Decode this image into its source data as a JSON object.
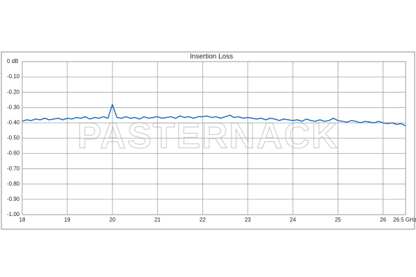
{
  "chart_data": {
    "type": "line",
    "title": "Insertion Loss",
    "watermark": "PASTERNACK",
    "x": [
      18.0,
      18.1,
      18.2,
      18.3,
      18.4,
      18.5,
      18.6,
      18.7,
      18.8,
      18.9,
      19.0,
      19.1,
      19.2,
      19.3,
      19.4,
      19.5,
      19.6,
      19.7,
      19.8,
      19.9,
      20.0,
      20.1,
      20.2,
      20.3,
      20.4,
      20.5,
      20.6,
      20.7,
      20.8,
      20.9,
      21.0,
      21.1,
      21.2,
      21.3,
      21.4,
      21.5,
      21.6,
      21.7,
      21.8,
      21.9,
      22.0,
      22.1,
      22.2,
      22.3,
      22.4,
      22.5,
      22.6,
      22.7,
      22.8,
      22.9,
      23.0,
      23.1,
      23.2,
      23.3,
      23.4,
      23.5,
      23.6,
      23.7,
      23.8,
      23.9,
      24.0,
      24.1,
      24.2,
      24.3,
      24.4,
      24.5,
      24.6,
      24.7,
      24.8,
      24.9,
      25.0,
      25.1,
      25.2,
      25.3,
      25.4,
      25.5,
      25.6,
      25.7,
      25.8,
      25.9,
      26.0,
      26.1,
      26.2,
      26.3,
      26.4,
      26.5
    ],
    "series": [
      {
        "name": "Insertion Loss",
        "color": "#1f6db5",
        "values": [
          -0.39,
          -0.38,
          -0.385,
          -0.375,
          -0.38,
          -0.37,
          -0.38,
          -0.375,
          -0.37,
          -0.38,
          -0.37,
          -0.375,
          -0.365,
          -0.37,
          -0.36,
          -0.375,
          -0.365,
          -0.37,
          -0.36,
          -0.37,
          -0.28,
          -0.365,
          -0.37,
          -0.36,
          -0.37,
          -0.365,
          -0.375,
          -0.36,
          -0.37,
          -0.365,
          -0.36,
          -0.37,
          -0.365,
          -0.36,
          -0.37,
          -0.355,
          -0.365,
          -0.36,
          -0.37,
          -0.36,
          -0.36,
          -0.355,
          -0.365,
          -0.36,
          -0.37,
          -0.36,
          -0.35,
          -0.365,
          -0.36,
          -0.37,
          -0.365,
          -0.37,
          -0.375,
          -0.37,
          -0.38,
          -0.37,
          -0.375,
          -0.385,
          -0.375,
          -0.38,
          -0.385,
          -0.38,
          -0.39,
          -0.375,
          -0.385,
          -0.39,
          -0.38,
          -0.39,
          -0.385,
          -0.37,
          -0.385,
          -0.39,
          -0.395,
          -0.385,
          -0.39,
          -0.4,
          -0.39,
          -0.395,
          -0.4,
          -0.39,
          -0.4,
          -0.405,
          -0.4,
          -0.41,
          -0.405,
          -0.42
        ]
      }
    ],
    "xlim": [
      18,
      26.5
    ],
    "ylim": [
      -1,
      0
    ],
    "xticks": [
      18,
      19,
      20,
      21,
      22,
      23,
      24,
      25,
      26,
      {
        "value": 26.5,
        "label": "26.5 GHz"
      }
    ],
    "yticks": [
      {
        "value": 0,
        "label": "0 dB"
      },
      {
        "value": -0.1,
        "label": "-0.10"
      },
      {
        "value": -0.2,
        "label": "-0.20"
      },
      {
        "value": -0.3,
        "label": "-0.30"
      },
      {
        "value": -0.4,
        "label": "-0.40"
      },
      {
        "value": -0.5,
        "label": "-0.50"
      },
      {
        "value": -0.6,
        "label": "-0.60"
      },
      {
        "value": -0.7,
        "label": "-0.70"
      },
      {
        "value": -0.8,
        "label": "-0.80"
      },
      {
        "value": -0.9,
        "label": "-0.90"
      },
      {
        "value": -1,
        "label": "-1.00"
      }
    ],
    "grid": true
  }
}
